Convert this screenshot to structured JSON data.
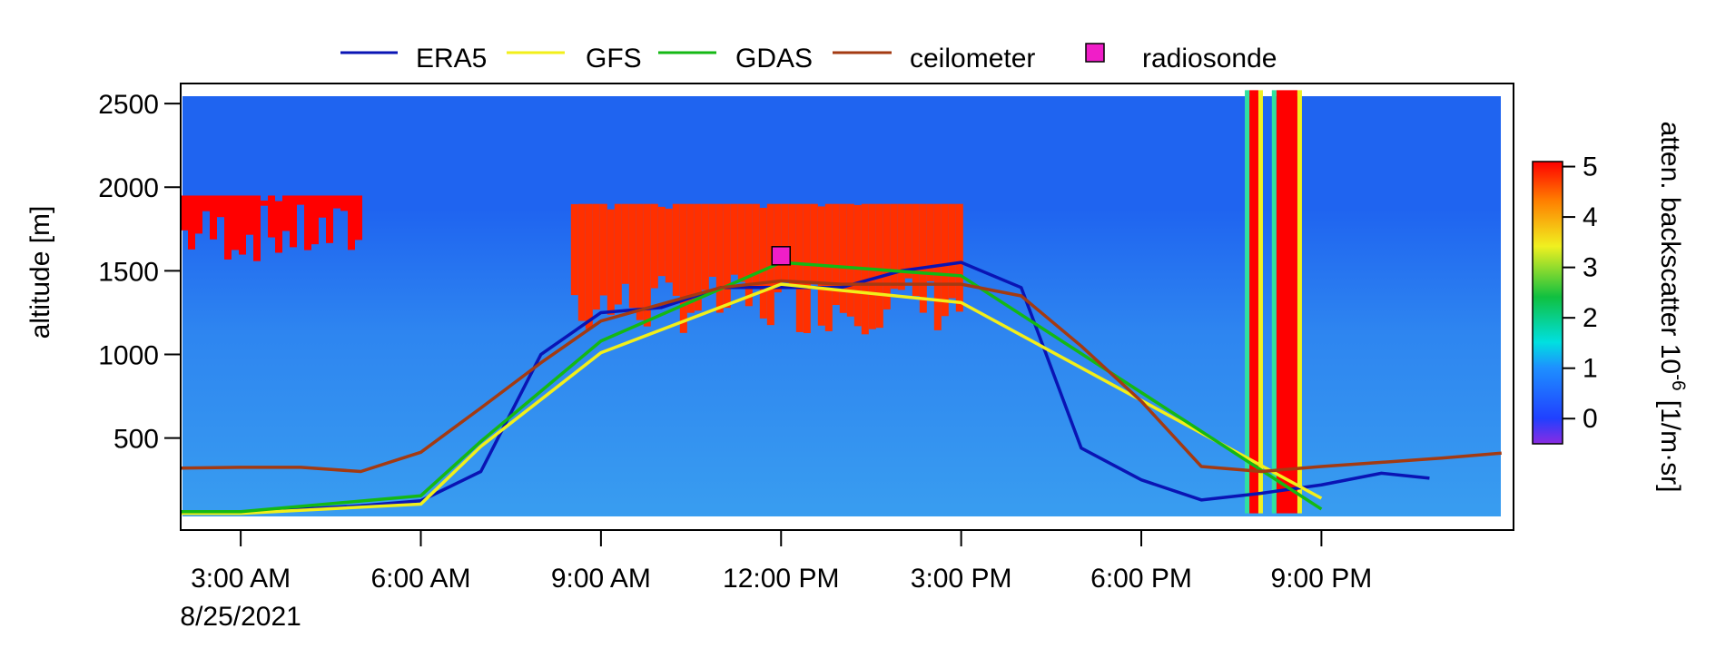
{
  "chart_data": {
    "type": "line",
    "background": "heatmap",
    "ylabel": "altitude [m]",
    "colorbar_label": "atten. backscatter 10",
    "colorbar_exponent": "-6",
    "colorbar_unit": "[1/m·sr]",
    "xlim_hours": [
      1,
      23.2
    ],
    "ylim": [
      -50,
      2620
    ],
    "heatmap_top": 2580,
    "x_ticks": [
      {
        "hour": 2,
        "label": "3:00 AM",
        "sublabel": "8/25/2021"
      },
      {
        "hour": 5,
        "label": "6:00 AM",
        "sublabel": ""
      },
      {
        "hour": 8,
        "label": "9:00 AM",
        "sublabel": ""
      },
      {
        "hour": 11,
        "label": "12:00 PM",
        "sublabel": ""
      },
      {
        "hour": 14,
        "label": "3:00 PM",
        "sublabel": ""
      },
      {
        "hour": 17,
        "label": "6:00 PM",
        "sublabel": ""
      },
      {
        "hour": 20,
        "label": "9:00 PM",
        "sublabel": ""
      }
    ],
    "y_ticks": [
      {
        "value": 500,
        "label": "500"
      },
      {
        "value": 1000,
        "label": "1000"
      },
      {
        "value": 1500,
        "label": "1500"
      },
      {
        "value": 2000,
        "label": "2000"
      },
      {
        "value": 2500,
        "label": "2500"
      }
    ],
    "colorbar_ticks": [
      {
        "value": 0,
        "label": "0"
      },
      {
        "value": 1,
        "label": "1"
      },
      {
        "value": 2,
        "label": "2"
      },
      {
        "value": 3,
        "label": "3"
      },
      {
        "value": 4,
        "label": "4"
      },
      {
        "value": 5,
        "label": "5"
      }
    ],
    "colorbar_range": [
      -0.5,
      5.1
    ],
    "legend_position": "top",
    "series": [
      {
        "name": "ERA5",
        "color": "#0a14b4",
        "x": [
          1,
          2,
          3,
          4,
          5,
          6,
          7,
          8,
          9,
          10,
          11,
          12,
          13,
          14,
          15,
          16,
          17,
          18,
          19,
          20,
          21,
          21.8
        ],
        "y": [
          55,
          55,
          75,
          95,
          125,
          300,
          1000,
          1250,
          1280,
          1400,
          1400,
          1400,
          1500,
          1550,
          1400,
          440,
          250,
          130,
          170,
          220,
          290,
          260
        ]
      },
      {
        "name": "GFS",
        "color": "#f2ef1a",
        "x": [
          1,
          2,
          5,
          6,
          8,
          11,
          14,
          20
        ],
        "y": [
          50,
          50,
          105,
          450,
          1010,
          1420,
          1310,
          140
        ]
      },
      {
        "name": "GDAS",
        "color": "#14b814",
        "x": [
          1,
          2,
          5,
          6,
          8,
          11,
          14,
          20
        ],
        "y": [
          60,
          60,
          155,
          480,
          1080,
          1550,
          1470,
          75
        ]
      },
      {
        "name": "ceilometer",
        "color": "#a33a12",
        "x": [
          1,
          2,
          3,
          4,
          5,
          6,
          7,
          8,
          9,
          10,
          11,
          12,
          13,
          14,
          15,
          16,
          17,
          18,
          19,
          20,
          21,
          22,
          23
        ],
        "y": [
          320,
          325,
          325,
          300,
          415,
          680,
          950,
          1200,
          1300,
          1400,
          1440,
          1420,
          1420,
          1420,
          1350,
          1050,
          720,
          330,
          300,
          330,
          355,
          380,
          410
        ]
      }
    ],
    "points": [
      {
        "name": "radiosonde",
        "color": "#f01ec8",
        "x": 11,
        "y": 1590
      }
    ],
    "heatmap_features": [
      {
        "name": "morning layer",
        "x0": 1,
        "x1": 3.95,
        "base": 1720,
        "top": 1950,
        "value": 5
      },
      {
        "name": "midday layer",
        "x0": 7.5,
        "x1": 13.95,
        "base": 1300,
        "top": 1900,
        "value": 4.5
      },
      {
        "name": "evening plume A",
        "x0": 18.8,
        "x1": 18.95,
        "base": 50,
        "top": 2580,
        "value": 5
      },
      {
        "name": "evening plume B",
        "x0": 19.25,
        "x1": 19.6,
        "base": 50,
        "top": 2580,
        "value": 5
      }
    ]
  }
}
